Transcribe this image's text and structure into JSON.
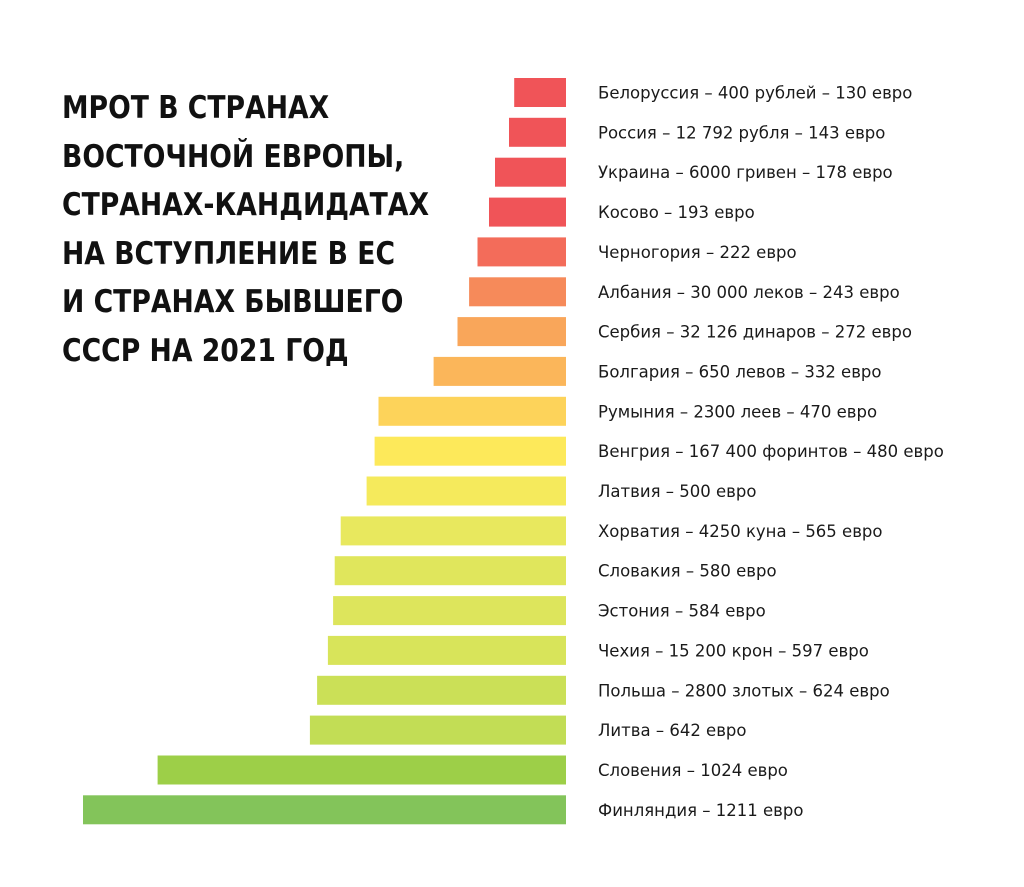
{
  "chart_data": {
    "type": "bar",
    "orientation": "horizontal",
    "title_lines": [
      "МРОТ В СТРАНАХ",
      "ВОСТОЧНОЙ ЕВРОПЫ,",
      "СТРАНАХ-КАНДИДАТАХ",
      "НА ВСТУПЛЕНИЕ В ЕС",
      "И СТРАНАХ БЫВШЕГО",
      "СССР НА 2021 ГОД"
    ],
    "categories": [
      "Белоруссия",
      "Россия",
      "Украина",
      "Косово",
      "Черногория",
      "Албания",
      "Сербия",
      "Болгария",
      "Румыния",
      "Венгрия",
      "Латвия",
      "Хорватия",
      "Словакия",
      "Эстония",
      "Чехия",
      "Польша",
      "Литва",
      "Словения",
      "Финляндия"
    ],
    "values": [
      130,
      143,
      178,
      193,
      222,
      243,
      272,
      332,
      470,
      480,
      500,
      565,
      580,
      584,
      597,
      624,
      642,
      1024,
      1211
    ],
    "labels": [
      "Белоруссия – 400 рублей – 130 евро",
      "Россия – 12 792 рубля – 143 евро",
      "Украина – 6000 гривен – 178 евро",
      "Косово – 193 евро",
      "Черногория – 222 евро",
      "Албания – 30 000 леков – 243 евро",
      "Сербия – 32 126 динаров – 272 евро",
      "Болгария – 650 левов – 332 евро",
      "Румыния – 2300 леев – 470 евро",
      "Венгрия – 167 400 форинтов – 480 евро",
      "Латвия – 500 евро",
      "Хорватия – 4250 куна – 565 евро",
      "Словакия – 580 евро",
      "Эстония – 584 евро",
      "Чехия – 15 200 крон – 597 евро",
      "Польша – 2800 злотых – 624 евро",
      "Литва – 642 евро",
      "Словения – 1024 евро",
      "Финляндия – 1211 евро"
    ],
    "colors": [
      "#f05458",
      "#f05458",
      "#f05458",
      "#f05458",
      "#f36c5a",
      "#f68a5a",
      "#f9a65a",
      "#fbb65a",
      "#fdd35a",
      "#fde95a",
      "#f5ea5c",
      "#e8e85e",
      "#e0e65c",
      "#dde55c",
      "#d8e45a",
      "#cbe057",
      "#c2dd55",
      "#9dcf48",
      "#83c45a"
    ],
    "bar_alignment": "right",
    "xlim": [
      0,
      1211
    ],
    "grid": false,
    "legend": "none"
  }
}
